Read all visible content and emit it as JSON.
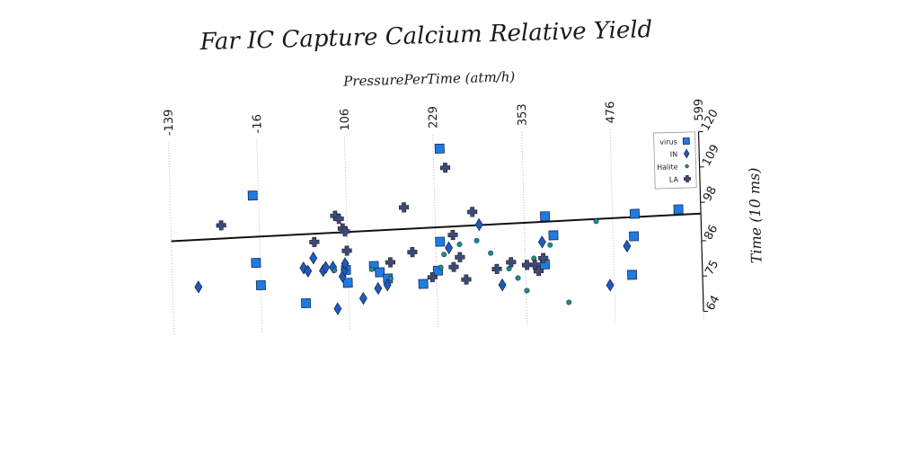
{
  "chart_data": {
    "type": "scatter",
    "title": "Far IC Capture Calcium Relative Yield",
    "xlabel": "PressurePerTime (atm/h)",
    "ylabel": "Time (10 ms)",
    "xlim": [
      -139,
      599
    ],
    "ylim": [
      64,
      120
    ],
    "xticks": [
      "-139",
      "-16",
      "106",
      "229",
      "353",
      "476",
      "599"
    ],
    "yticks": [
      "64",
      "75",
      "86",
      "98",
      "109",
      "120"
    ],
    "grid": "vertical",
    "legend_position": "top-right",
    "trend_line": {
      "x": [
        -139,
        599
      ],
      "y": [
        90.5,
        94.5
      ]
    },
    "series": [
      {
        "name": "virus",
        "marker": "square",
        "color": "#1e7ce0",
        "points": [
          [
            -24,
            104
          ],
          [
            -22,
            83
          ],
          [
            -16,
            76
          ],
          [
            46,
            70
          ],
          [
            103,
            80
          ],
          [
            105,
            76
          ],
          [
            142,
            81
          ],
          [
            150,
            79
          ],
          [
            161,
            77
          ],
          [
            210,
            75
          ],
          [
            231,
            79
          ],
          [
            235,
            88
          ],
          [
            238,
            117
          ],
          [
            380,
            80
          ],
          [
            382,
            95
          ],
          [
            393,
            89
          ],
          [
            501,
            76
          ],
          [
            505,
            88
          ],
          [
            507,
            95
          ],
          [
            568,
            96
          ]
        ]
      },
      {
        "name": "IN",
        "marker": "diamond",
        "color": "#1f5bbf",
        "points": [
          [
            -103,
            76
          ],
          [
            44,
            81
          ],
          [
            50,
            80
          ],
          [
            58,
            84
          ],
          [
            71,
            80
          ],
          [
            75,
            81
          ],
          [
            85,
            81
          ],
          [
            90,
            68
          ],
          [
            98,
            78
          ],
          [
            101,
            80
          ],
          [
            102,
            82
          ],
          [
            126,
            71
          ],
          [
            147,
            74
          ],
          [
            160,
            75
          ],
          [
            247,
            86
          ],
          [
            290,
            93
          ],
          [
            320,
            74
          ],
          [
            377,
            87
          ],
          [
            470,
            73
          ],
          [
            495,
            85
          ]
        ]
      },
      {
        "name": "Halite",
        "marker": "circle",
        "color": "#1f8a8a",
        "points": [
          [
            87,
            80
          ],
          [
            139,
            80
          ],
          [
            165,
            77
          ],
          [
            235,
            80
          ],
          [
            240,
            84
          ],
          [
            262,
            87
          ],
          [
            286,
            88
          ],
          [
            305,
            84
          ],
          [
            330,
            79
          ],
          [
            342,
            76
          ],
          [
            354,
            72
          ],
          [
            365,
            82
          ],
          [
            388,
            86
          ],
          [
            412,
            68
          ],
          [
            453,
            93
          ]
        ]
      },
      {
        "name": "LA",
        "marker": "plus",
        "color": "#3c4a7a",
        "points": [
          [
            -69,
            95
          ],
          [
            90,
            97
          ],
          [
            95,
            96
          ],
          [
            100,
            93
          ],
          [
            103,
            92
          ],
          [
            105,
            86
          ],
          [
            60,
            89
          ],
          [
            165,
            82
          ],
          [
            186,
            99
          ],
          [
            196,
            85
          ],
          [
            223,
            77
          ],
          [
            245,
            111
          ],
          [
            253,
            90
          ],
          [
            253,
            80
          ],
          [
            262,
            83
          ],
          [
            270,
            76
          ],
          [
            281,
            97
          ],
          [
            313,
            79
          ],
          [
            333,
            81
          ],
          [
            355,
            80
          ],
          [
            366,
            80
          ],
          [
            371,
            78
          ],
          [
            378,
            82
          ]
        ]
      }
    ]
  }
}
